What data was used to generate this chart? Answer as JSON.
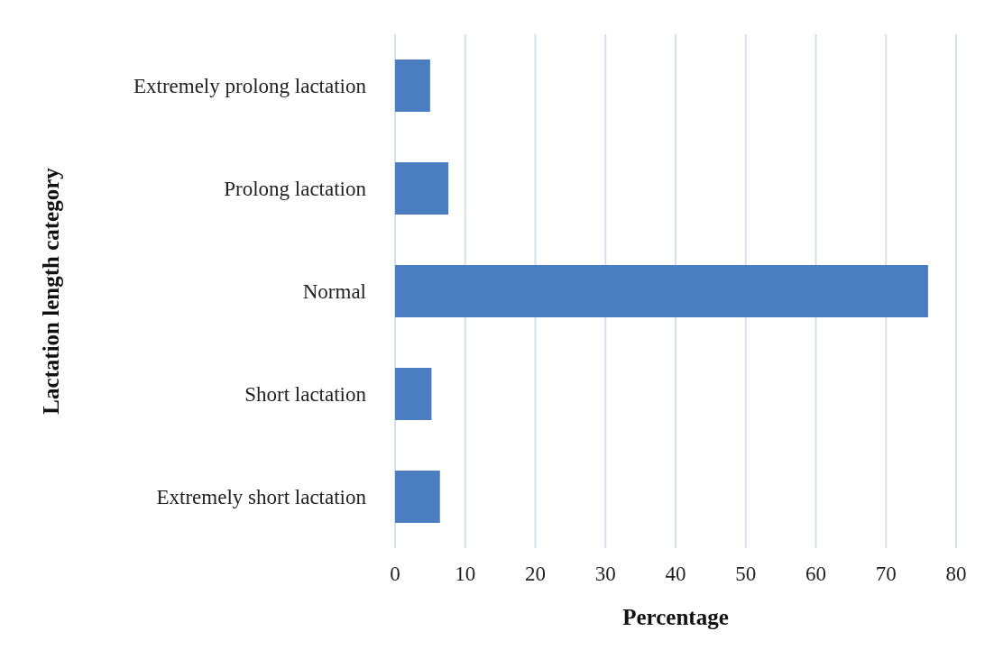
{
  "chart_data": {
    "type": "bar",
    "orientation": "horizontal",
    "categories": [
      "Extremely prolong lactation",
      "Prolong lactation",
      "Normal",
      "Short lactation",
      "Extremely short lactation"
    ],
    "values": [
      5.0,
      7.6,
      76.0,
      5.2,
      6.4
    ],
    "color": "#4a7ec0",
    "xlim": [
      0,
      80
    ],
    "xticks": [
      0,
      10,
      20,
      30,
      40,
      50,
      60,
      70,
      80
    ],
    "grid": "x",
    "xlabel": "Percentage",
    "ylabel": "Lactation length category"
  }
}
